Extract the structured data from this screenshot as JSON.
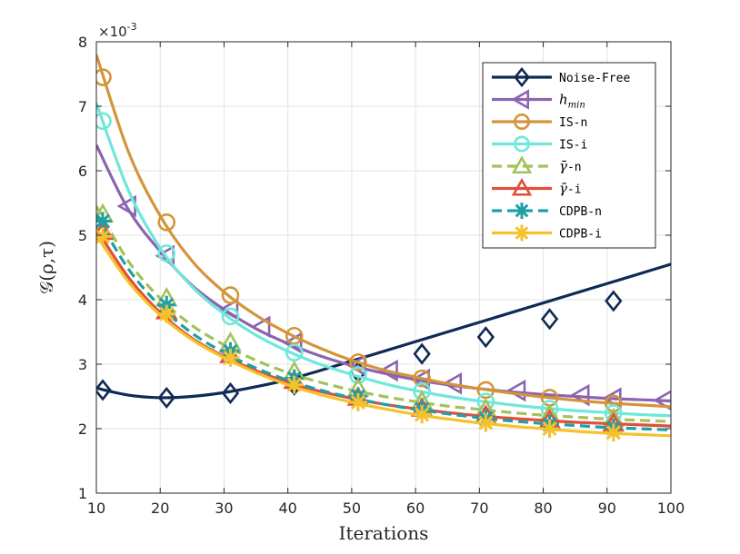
{
  "chart_data": {
    "type": "line",
    "title": "",
    "xlabel": "Iterations",
    "ylabel": "𝒢(ρ,τ)",
    "y_exponent": "×10",
    "y_exponent_power": "-3",
    "xlim": [
      10,
      100
    ],
    "ylim": [
      1,
      8
    ],
    "xticks": [
      "10",
      "20",
      "30",
      "40",
      "50",
      "60",
      "70",
      "80",
      "90",
      "100"
    ],
    "yticks": [
      "1",
      "2",
      "3",
      "4",
      "5",
      "6",
      "7",
      "8"
    ],
    "grid": true,
    "legend_position": "top-right",
    "series": [
      {
        "name": "Noise-Free",
        "color": "#0e2a55",
        "marker": "diamond",
        "dashed": false,
        "x": [
          10,
          15,
          20,
          25,
          30,
          35,
          40,
          45,
          50,
          55,
          60,
          65,
          70,
          75,
          80,
          85,
          90,
          95,
          100
        ],
        "y": [
          2.63,
          2.52,
          2.48,
          2.5,
          2.56,
          2.65,
          2.76,
          2.9,
          3.05,
          3.2,
          3.35,
          3.5,
          3.65,
          3.8,
          3.95,
          4.1,
          4.25,
          4.4,
          4.55
        ],
        "marker_x": [
          11,
          21,
          31,
          41,
          51,
          61,
          71,
          81,
          91
        ],
        "marker_y": [
          2.6,
          2.48,
          2.55,
          2.68,
          2.88,
          3.16,
          3.42,
          3.7,
          3.98
        ]
      },
      {
        "name": "h_min",
        "label_main": "h",
        "label_sub": "min",
        "color": "#8b64b2",
        "marker": "triangle-left",
        "dashed": false,
        "x": [
          10,
          15,
          20,
          25,
          30,
          35,
          40,
          45,
          50,
          55,
          60,
          65,
          70,
          75,
          80,
          85,
          90,
          95,
          100
        ],
        "y": [
          6.4,
          5.4,
          4.75,
          4.22,
          3.85,
          3.55,
          3.32,
          3.13,
          2.98,
          2.86,
          2.76,
          2.68,
          2.62,
          2.57,
          2.53,
          2.5,
          2.47,
          2.45,
          2.43
        ],
        "marker_x": [
          15,
          21,
          31,
          36,
          41,
          51,
          56,
          61,
          66,
          76,
          86,
          91,
          99
        ],
        "marker_y": [
          5.45,
          4.68,
          3.85,
          3.58,
          3.33,
          2.98,
          2.9,
          2.76,
          2.7,
          2.59,
          2.52,
          2.47,
          2.44
        ]
      },
      {
        "name": "IS-n",
        "color": "#d4953a",
        "marker": "circle",
        "dashed": false,
        "x": [
          10,
          15,
          20,
          25,
          30,
          35,
          40,
          45,
          50,
          55,
          60,
          65,
          70,
          75,
          80,
          85,
          90,
          95,
          100
        ],
        "y": [
          7.8,
          6.3,
          5.3,
          4.6,
          4.12,
          3.76,
          3.48,
          3.25,
          3.06,
          2.91,
          2.8,
          2.7,
          2.62,
          2.55,
          2.49,
          2.44,
          2.4,
          2.37,
          2.34
        ],
        "marker_x": [
          11,
          21,
          31,
          41,
          51,
          61,
          71,
          81,
          91
        ],
        "marker_y": [
          7.45,
          5.2,
          4.07,
          3.44,
          3.03,
          2.78,
          2.6,
          2.48,
          2.39
        ]
      },
      {
        "name": "IS-i",
        "color": "#6ee8da",
        "marker": "circle",
        "dashed": false,
        "x": [
          10,
          15,
          20,
          25,
          30,
          35,
          40,
          45,
          50,
          55,
          60,
          65,
          70,
          75,
          80,
          85,
          90,
          95,
          100
        ],
        "y": [
          7.05,
          5.7,
          4.8,
          4.2,
          3.78,
          3.45,
          3.2,
          3.0,
          2.84,
          2.7,
          2.59,
          2.5,
          2.43,
          2.37,
          2.32,
          2.28,
          2.25,
          2.22,
          2.2
        ],
        "marker_x": [
          11,
          21,
          31,
          41,
          51,
          61,
          71,
          81,
          91
        ],
        "marker_y": [
          6.77,
          4.72,
          3.74,
          3.18,
          2.83,
          2.58,
          2.42,
          2.31,
          2.24
        ]
      },
      {
        "name": "γ̄-n",
        "label_main": "γ̄",
        "label_suffix": "-n",
        "color": "#a3c25a",
        "marker": "triangle-up",
        "dashed": true,
        "x": [
          10,
          15,
          20,
          25,
          30,
          35,
          40,
          45,
          50,
          55,
          60,
          65,
          70,
          75,
          80,
          85,
          90,
          95,
          100
        ],
        "y": [
          5.45,
          4.6,
          4.02,
          3.6,
          3.3,
          3.06,
          2.87,
          2.72,
          2.6,
          2.5,
          2.42,
          2.35,
          2.3,
          2.25,
          2.21,
          2.18,
          2.15,
          2.13,
          2.11
        ],
        "marker_x": [
          11,
          21,
          31,
          41,
          51,
          61,
          71,
          81,
          91
        ],
        "marker_y": [
          5.32,
          4.02,
          3.33,
          2.88,
          2.62,
          2.42,
          2.3,
          2.21,
          2.15
        ]
      },
      {
        "name": "γ̄-i",
        "label_main": "γ̄",
        "label_suffix": "-i",
        "color": "#e04f3e",
        "marker": "triangle-up",
        "dashed": false,
        "x": [
          10,
          15,
          20,
          25,
          30,
          35,
          40,
          45,
          50,
          55,
          60,
          65,
          70,
          75,
          80,
          85,
          90,
          95,
          100
        ],
        "y": [
          5.1,
          4.35,
          3.8,
          3.4,
          3.12,
          2.9,
          2.72,
          2.58,
          2.47,
          2.38,
          2.31,
          2.25,
          2.2,
          2.16,
          2.13,
          2.1,
          2.08,
          2.06,
          2.04
        ],
        "marker_x": [
          11,
          21,
          31,
          41,
          51,
          61,
          71,
          81,
          91
        ],
        "marker_y": [
          5.05,
          3.82,
          3.14,
          2.74,
          2.48,
          2.31,
          2.2,
          2.13,
          2.08
        ]
      },
      {
        "name": "CDPB-n",
        "color": "#1f9fa6",
        "marker": "asterisk",
        "dashed": true,
        "x": [
          10,
          15,
          20,
          25,
          30,
          35,
          40,
          45,
          50,
          55,
          60,
          65,
          70,
          75,
          80,
          85,
          90,
          95,
          100
        ],
        "y": [
          5.3,
          4.48,
          3.9,
          3.48,
          3.18,
          2.94,
          2.75,
          2.6,
          2.48,
          2.38,
          2.3,
          2.23,
          2.17,
          2.12,
          2.08,
          2.05,
          2.02,
          2.0,
          1.98
        ],
        "marker_x": [
          11,
          21,
          31,
          41,
          51,
          61,
          71,
          81,
          91
        ],
        "marker_y": [
          5.22,
          3.92,
          3.2,
          2.78,
          2.5,
          2.3,
          2.16,
          2.07,
          2.01
        ]
      },
      {
        "name": "CDPB-i",
        "color": "#f6c12a",
        "marker": "asterisk",
        "dashed": false,
        "x": [
          10,
          15,
          20,
          25,
          30,
          35,
          40,
          45,
          50,
          55,
          60,
          65,
          70,
          75,
          80,
          85,
          90,
          95,
          100
        ],
        "y": [
          5.0,
          4.28,
          3.76,
          3.38,
          3.1,
          2.87,
          2.68,
          2.53,
          2.41,
          2.31,
          2.22,
          2.15,
          2.09,
          2.04,
          2.0,
          1.96,
          1.93,
          1.91,
          1.89
        ],
        "marker_x": [
          11,
          21,
          31,
          41,
          51,
          61,
          71,
          81,
          91
        ],
        "marker_y": [
          4.98,
          3.78,
          3.1,
          2.68,
          2.41,
          2.22,
          2.09,
          2.0,
          1.94
        ]
      }
    ]
  }
}
